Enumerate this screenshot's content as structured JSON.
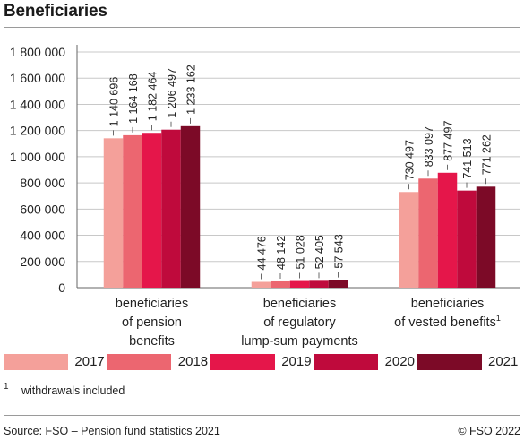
{
  "title": "Beneficiaries",
  "footnote": {
    "mark": "1",
    "text": "withdrawals included"
  },
  "source": "Source: FSO – Pension fund statistics 2021",
  "copyright": "© FSO 2022",
  "chart_data": {
    "type": "bar",
    "title": "Beneficiaries",
    "xlabel": "",
    "ylabel": "",
    "ylim": [
      0,
      1800000
    ],
    "yticks": [
      0,
      200000,
      400000,
      600000,
      800000,
      1000000,
      1200000,
      1400000,
      1600000,
      1800000
    ],
    "ytick_labels": [
      "0",
      "200 000",
      "400 000",
      "600 000",
      "800 000",
      "1 000 000",
      "1 200 000",
      "1 400 000",
      "1 600 000",
      "1 800 000"
    ],
    "categories": [
      [
        "beneficiaries",
        "of pension",
        "benefits"
      ],
      [
        "beneficiaries",
        "of regulatory",
        "lump-sum payments"
      ],
      [
        "beneficiaries",
        "of vested benefits"
      ]
    ],
    "category_superscripts": [
      "",
      "",
      "1"
    ],
    "series": [
      {
        "name": "2017",
        "color": "#f4a09a",
        "values": [
          1140696,
          44476,
          730497
        ],
        "labels": [
          "1 140 696",
          "44 476",
          "730 497"
        ]
      },
      {
        "name": "2018",
        "color": "#ec6670",
        "values": [
          1164168,
          48142,
          833097
        ],
        "labels": [
          "1 164 168",
          "48 142",
          "833 097"
        ]
      },
      {
        "name": "2019",
        "color": "#e5164a",
        "values": [
          1182464,
          51028,
          877497
        ],
        "labels": [
          "1 182 464",
          "51 028",
          "877 497"
        ]
      },
      {
        "name": "2020",
        "color": "#bf0a3c",
        "values": [
          1206497,
          52405,
          741513
        ],
        "labels": [
          "1 206 497",
          "52 405",
          "741 513"
        ]
      },
      {
        "name": "2021",
        "color": "#7c0a27",
        "values": [
          1233162,
          57543,
          771262
        ],
        "labels": [
          "1 233 162",
          "57 543",
          "771 262"
        ]
      }
    ],
    "grid": "horizontal",
    "legend": "bottom"
  }
}
